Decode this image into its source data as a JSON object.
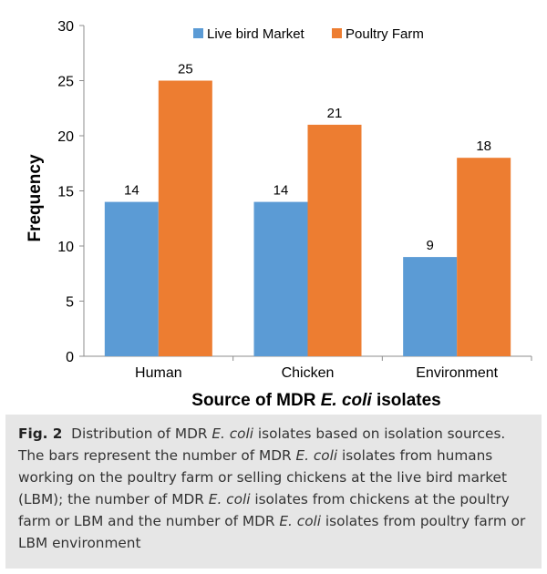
{
  "chart_data": {
    "type": "bar",
    "categories": [
      "Human",
      "Chicken",
      "Environment"
    ],
    "series": [
      {
        "name": "Live bird Market",
        "values": [
          14,
          14,
          9
        ],
        "color": "#5b9bd5"
      },
      {
        "name": "Poultry Farm",
        "values": [
          25,
          21,
          18
        ],
        "color": "#ed7d31"
      }
    ],
    "ylabel": "Frequency",
    "xlabel_parts": [
      "Source of MDR ",
      "E. coli",
      " isolates"
    ],
    "ylim": [
      0,
      30
    ],
    "yticks": [
      0,
      5,
      10,
      15,
      20,
      25,
      30
    ],
    "grid": false,
    "legend": "top-center",
    "data_labels": true
  },
  "caption": {
    "label": "Fig. 2",
    "parts": [
      {
        "t": "Distribution of MDR ",
        "i": false
      },
      {
        "t": "E. coli",
        "i": true
      },
      {
        "t": " isolates based on isolation sources. The bars represent the number of MDR ",
        "i": false
      },
      {
        "t": "E. coli",
        "i": true
      },
      {
        "t": " isolates from humans working on the poultry farm or selling chickens at the live bird market (LBM); the number of MDR ",
        "i": false
      },
      {
        "t": "E. coli",
        "i": true
      },
      {
        "t": " isolates from chickens at the poultry farm or LBM and the number of MDR ",
        "i": false
      },
      {
        "t": "E. coli",
        "i": true
      },
      {
        "t": " isolates from poultry farm or LBM environment",
        "i": false
      }
    ]
  }
}
